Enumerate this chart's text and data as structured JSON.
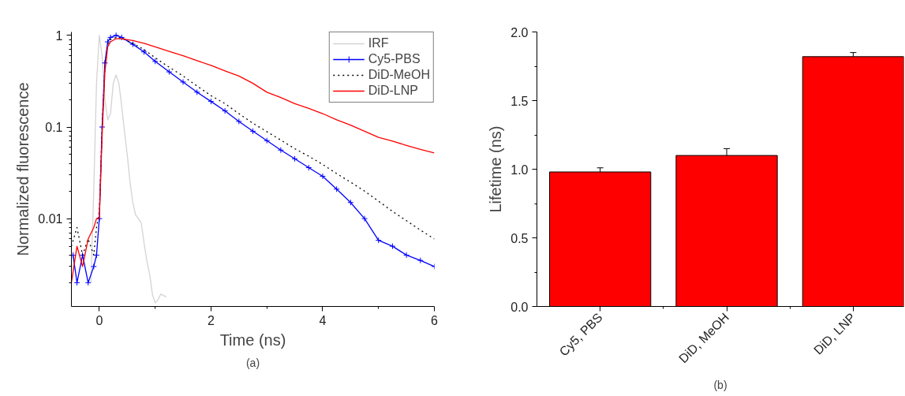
{
  "chart_data": [
    {
      "type": "line",
      "xlabel": "Time (ns)",
      "ylabel": "Normalized fluorescence",
      "annotations": [
        "(a)"
      ],
      "log": "y",
      "xlim": [
        -0.5,
        6
      ],
      "xticks": [
        0,
        2,
        4,
        6
      ],
      "ylim": [
        0.0011,
        1.09
      ],
      "yticks": [
        0.01,
        0.1,
        1
      ],
      "legend": "top right",
      "grid": false,
      "series": [
        {
          "name": "IRF",
          "color": "#d3d3d3",
          "line_style": "solid",
          "marker": "none",
          "x": [
            -0.15,
            -0.1,
            -0.05,
            0,
            0.05,
            0.1,
            0.15,
            0.2,
            0.25,
            0.3,
            0.35,
            0.4,
            0.45,
            0.5,
            0.55,
            0.6,
            0.65,
            0.7,
            0.75,
            0.8,
            0.85,
            0.9,
            0.95,
            1.0,
            1.05,
            1.1,
            1.2
          ],
          "values": [
            0.002,
            0.02,
            0.3,
            1.0,
            0.6,
            0.2,
            0.12,
            0.14,
            0.3,
            0.37,
            0.3,
            0.17,
            0.09,
            0.05,
            0.025,
            0.015,
            0.011,
            0.01,
            0.009,
            0.0055,
            0.0035,
            0.0025,
            0.0015,
            0.0012,
            0.0013,
            0.0015,
            0.0014
          ]
        },
        {
          "name": "Cy5-PBS",
          "color": "#0000ff",
          "line_style": "solid",
          "marker": "cross",
          "x": [
            -0.47,
            -0.4,
            -0.3,
            -0.2,
            -0.1,
            -0.05,
            0,
            0.05,
            0.1,
            0.15,
            0.2,
            0.3,
            0.4,
            0.6,
            0.8,
            1.0,
            1.25,
            1.5,
            1.75,
            2.0,
            2.25,
            2.5,
            2.75,
            3.0,
            3.25,
            3.5,
            3.75,
            4.0,
            4.25,
            4.5,
            4.75,
            5.0,
            5.25,
            5.5,
            5.75,
            6.0
          ],
          "values": [
            0.004,
            0.002,
            0.004,
            0.002,
            0.003,
            0.004,
            0.01,
            0.1,
            0.5,
            0.85,
            0.95,
            1.0,
            0.95,
            0.8,
            0.66,
            0.52,
            0.4,
            0.31,
            0.24,
            0.19,
            0.15,
            0.115,
            0.09,
            0.071,
            0.056,
            0.045,
            0.036,
            0.029,
            0.021,
            0.015,
            0.01,
            0.0058,
            0.005,
            0.004,
            0.0035,
            0.003
          ]
        },
        {
          "name": "DiD-MeOH",
          "color": "#000000",
          "line_style": "dotted",
          "marker": "none",
          "x": [
            -0.5,
            -0.4,
            -0.3,
            -0.2,
            -0.1,
            -0.05,
            0,
            0.05,
            0.1,
            0.15,
            0.2,
            0.3,
            0.4,
            0.6,
            0.8,
            1.0,
            1.25,
            1.5,
            1.75,
            2.0,
            2.25,
            2.5,
            2.75,
            3.0,
            3.25,
            3.5,
            3.75,
            4.0,
            4.25,
            4.5,
            4.75,
            5.0,
            5.25,
            5.5,
            5.75,
            6.0
          ],
          "values": [
            0.005,
            0.008,
            0.004,
            0.006,
            0.004,
            0.008,
            0.012,
            0.1,
            0.45,
            0.8,
            0.9,
            0.95,
            0.93,
            0.82,
            0.7,
            0.57,
            0.45,
            0.36,
            0.28,
            0.22,
            0.18,
            0.14,
            0.11,
            0.089,
            0.072,
            0.058,
            0.048,
            0.039,
            0.031,
            0.025,
            0.02,
            0.0155,
            0.012,
            0.0095,
            0.0075,
            0.006
          ]
        },
        {
          "name": "DiD-LNP",
          "color": "#ff0000",
          "line_style": "solid",
          "marker": "none",
          "x": [
            -0.5,
            -0.4,
            -0.3,
            -0.2,
            -0.1,
            -0.05,
            0,
            0.05,
            0.1,
            0.15,
            0.2,
            0.3,
            0.4,
            0.6,
            0.8,
            1.0,
            1.25,
            1.5,
            1.75,
            2.0,
            2.25,
            2.5,
            2.75,
            3.0,
            3.25,
            3.5,
            3.75,
            4.0,
            4.25,
            4.5,
            4.75,
            5.0,
            5.25,
            5.5,
            5.75,
            6.0
          ],
          "values": [
            0.002,
            0.005,
            0.003,
            0.006,
            0.008,
            0.01,
            0.01,
            0.08,
            0.4,
            0.75,
            0.85,
            0.92,
            0.92,
            0.88,
            0.82,
            0.75,
            0.67,
            0.6,
            0.53,
            0.47,
            0.41,
            0.36,
            0.3,
            0.24,
            0.21,
            0.18,
            0.16,
            0.14,
            0.12,
            0.105,
            0.09,
            0.077,
            0.07,
            0.063,
            0.057,
            0.052
          ]
        }
      ]
    },
    {
      "type": "bar",
      "ylabel": "Lifetime (ns)",
      "annotations": [
        "(b)"
      ],
      "categories": [
        "Cy5, PBS",
        "DiD, MeOH",
        "DiD, LNP"
      ],
      "values": [
        0.98,
        1.1,
        1.82
      ],
      "errors": [
        0.03,
        0.05,
        0.03
      ],
      "color": "#ff0000",
      "ylim": [
        0,
        2
      ],
      "yticks": [
        {
          "value": 0,
          "label": "0.0"
        },
        {
          "value": 0.5,
          "label": "0.5"
        },
        {
          "value": 1,
          "label": "1.0"
        },
        {
          "value": 1.5,
          "label": "1.5"
        },
        {
          "value": 2,
          "label": "2.0"
        }
      ],
      "grid": false
    }
  ]
}
